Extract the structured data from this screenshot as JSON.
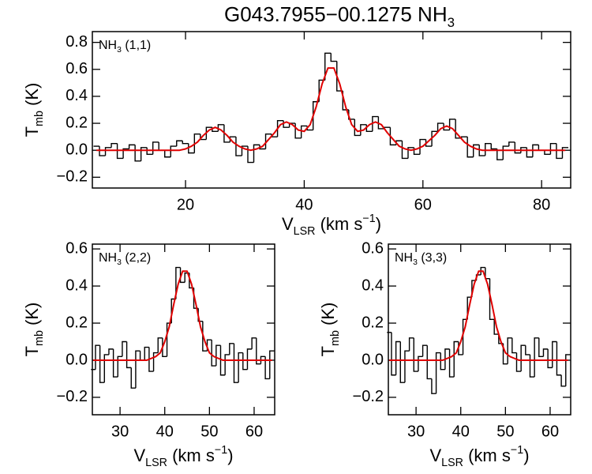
{
  "title": [
    {
      "text": "G043.7955−00.1275 NH"
    },
    {
      "text": "3",
      "sub": true
    }
  ],
  "chart_data": [
    {
      "type": "line",
      "annotation": [
        {
          "text": "NH"
        },
        {
          "text": "3",
          "sub": true
        },
        {
          "text": " (1,1)"
        }
      ],
      "xlabel": [
        {
          "text": "V"
        },
        {
          "text": "LSR",
          "sub": true
        },
        {
          "text": " (km s"
        },
        {
          "text": "−1",
          "sup": true
        },
        {
          "text": ")"
        }
      ],
      "ylabel": [
        {
          "text": "T"
        },
        {
          "text": "mb",
          "sub": true
        },
        {
          "text": " (K)"
        }
      ],
      "xlim": [
        4.3,
        84.9
      ],
      "ylim": [
        -0.28,
        0.88
      ],
      "xticks": [
        20,
        40,
        60,
        80
      ],
      "yticks": [
        {
          "value": -0.2,
          "label": "−0.2"
        },
        {
          "value": 0,
          "label": "0.0"
        },
        0.2,
        0.4,
        0.6,
        0.8
      ],
      "x": [
        5,
        6,
        7,
        8,
        9,
        10,
        11,
        12,
        13,
        14,
        15,
        16,
        17,
        18,
        19,
        20,
        21,
        22,
        23,
        24,
        25,
        26,
        27,
        28,
        29,
        30,
        31,
        32,
        33,
        34,
        35,
        36,
        37,
        38,
        39,
        40,
        41,
        42,
        43,
        44,
        45,
        46,
        47,
        48,
        49,
        50,
        51,
        52,
        53,
        54,
        55,
        56,
        57,
        58,
        59,
        60,
        61,
        62,
        63,
        64,
        65,
        66,
        67,
        68,
        69,
        70,
        71,
        72,
        73,
        74,
        75,
        76,
        77,
        78,
        79,
        80,
        81,
        82,
        83,
        84
      ],
      "series": [
        {
          "color": "#000000",
          "step": true,
          "values": [
            0.03,
            -0.04,
            0.02,
            0.05,
            -0.06,
            0.01,
            0.04,
            -0.08,
            0.02,
            -0.03,
            0.06,
            0.0,
            -0.05,
            0.03,
            0.07,
            0.05,
            -0.02,
            0.12,
            0.08,
            0.17,
            0.14,
            0.19,
            0.06,
            0.1,
            -0.04,
            0.03,
            -0.09,
            0.04,
            0.01,
            0.12,
            0.1,
            0.22,
            0.17,
            0.2,
            0.09,
            0.18,
            0.15,
            0.36,
            0.52,
            0.72,
            0.66,
            0.44,
            0.3,
            0.23,
            0.11,
            0.19,
            0.14,
            0.25,
            0.16,
            0.17,
            0.04,
            0.07,
            -0.06,
            0.02,
            -0.03,
            0.08,
            0.03,
            0.14,
            0.2,
            0.15,
            0.23,
            0.09,
            0.1,
            -0.05,
            0.04,
            -0.04,
            0.05,
            0.01,
            -0.07,
            0.03,
            0.06,
            -0.02,
            0.02,
            -0.05,
            0.04,
            0.0,
            -0.03,
            0.05,
            -0.06,
            0.02
          ]
        },
        {
          "color": "#e00000",
          "step": false,
          "values": [
            0,
            0,
            0,
            0,
            0,
            0,
            0,
            0,
            0,
            0,
            0,
            0,
            0,
            0,
            0,
            0.01,
            0.03,
            0.06,
            0.11,
            0.15,
            0.17,
            0.15,
            0.11,
            0.06,
            0.03,
            0.01,
            0,
            0.01,
            0.03,
            0.08,
            0.13,
            0.19,
            0.21,
            0.19,
            0.15,
            0.14,
            0.19,
            0.32,
            0.49,
            0.61,
            0.61,
            0.49,
            0.32,
            0.19,
            0.14,
            0.15,
            0.19,
            0.21,
            0.19,
            0.13,
            0.08,
            0.03,
            0.01,
            0,
            0.01,
            0.03,
            0.07,
            0.11,
            0.16,
            0.18,
            0.16,
            0.11,
            0.06,
            0.03,
            0.01,
            0,
            0,
            0,
            0,
            0,
            0,
            0,
            0,
            0,
            0,
            0,
            0,
            0,
            0,
            0
          ]
        }
      ]
    },
    {
      "type": "line",
      "annotation": [
        {
          "text": "NH"
        },
        {
          "text": "3",
          "sub": true
        },
        {
          "text": " (2,2)"
        }
      ],
      "xlabel": [
        {
          "text": "V"
        },
        {
          "text": "LSR",
          "sub": true
        },
        {
          "text": " (km s"
        },
        {
          "text": "−1",
          "sup": true
        },
        {
          "text": ")"
        }
      ],
      "ylabel": [
        {
          "text": "T"
        },
        {
          "text": "mb",
          "sub": true
        },
        {
          "text": " (K)"
        }
      ],
      "xlim": [
        23.8,
        64.6
      ],
      "ylim": [
        -0.294,
        0.626
      ],
      "xticks": [
        30,
        40,
        50,
        60
      ],
      "yticks": [
        {
          "value": -0.2,
          "label": "−0.2"
        },
        {
          "value": 0,
          "label": "0.0"
        },
        0.2,
        0.4,
        0.6
      ],
      "x": [
        24,
        25,
        26,
        27,
        28,
        29,
        30,
        31,
        32,
        33,
        34,
        35,
        36,
        37,
        38,
        39,
        40,
        41,
        42,
        43,
        44,
        45,
        46,
        47,
        48,
        49,
        50,
        51,
        52,
        53,
        54,
        55,
        56,
        57,
        58,
        59,
        60,
        61,
        62,
        63,
        64
      ],
      "series": [
        {
          "color": "#000000",
          "step": true,
          "values": [
            -0.05,
            0.08,
            -0.12,
            0.03,
            0.06,
            -0.09,
            0.02,
            0.1,
            -0.04,
            -0.15,
            0.05,
            0.0,
            0.07,
            -0.06,
            0.04,
            0.12,
            0.02,
            0.2,
            0.33,
            0.5,
            0.42,
            0.47,
            0.39,
            0.28,
            0.21,
            0.05,
            0.11,
            -0.03,
            0.08,
            -0.08,
            0.03,
            0.09,
            -0.12,
            0.04,
            -0.05,
            0.06,
            0.12,
            -0.02,
            0.02,
            -0.1,
            0.05
          ]
        },
        {
          "color": "#e00000",
          "step": false,
          "values": [
            0,
            0,
            0,
            0,
            0,
            0,
            0,
            0,
            0,
            0,
            0,
            0,
            0,
            0.01,
            0.02,
            0.04,
            0.1,
            0.18,
            0.3,
            0.41,
            0.48,
            0.48,
            0.41,
            0.3,
            0.18,
            0.1,
            0.04,
            0.02,
            0.01,
            0,
            0,
            0,
            0,
            0,
            0,
            0,
            0,
            0,
            0,
            0,
            0
          ]
        }
      ]
    },
    {
      "type": "line",
      "annotation": [
        {
          "text": "NH"
        },
        {
          "text": "3",
          "sub": true
        },
        {
          "text": " (3,3)"
        }
      ],
      "xlabel": [
        {
          "text": "V"
        },
        {
          "text": "LSR",
          "sub": true
        },
        {
          "text": " (km s"
        },
        {
          "text": "−1",
          "sup": true
        },
        {
          "text": ")"
        }
      ],
      "ylabel": [
        {
          "text": "T"
        },
        {
          "text": "mb",
          "sub": true
        },
        {
          "text": " (K)"
        }
      ],
      "xlim": [
        23.8,
        64.6
      ],
      "ylim": [
        -0.294,
        0.626
      ],
      "xticks": [
        30,
        40,
        50,
        60
      ],
      "yticks": [
        {
          "value": -0.2,
          "label": "−0.2"
        },
        {
          "value": 0,
          "label": "0.0"
        },
        0.2,
        0.4,
        0.6
      ],
      "x": [
        24,
        25,
        26,
        27,
        28,
        29,
        30,
        31,
        32,
        33,
        34,
        35,
        36,
        37,
        38,
        39,
        40,
        41,
        42,
        43,
        44,
        45,
        46,
        47,
        48,
        49,
        50,
        51,
        52,
        53,
        54,
        55,
        56,
        57,
        58,
        59,
        60,
        61,
        62,
        63,
        64
      ],
      "series": [
        {
          "color": "#000000",
          "step": true,
          "values": [
            0.15,
            -0.08,
            0.1,
            -0.12,
            0.05,
            0.12,
            -0.06,
            0.02,
            0.08,
            -0.1,
            -0.18,
            0.04,
            -0.05,
            0.06,
            -0.09,
            0.1,
            0.03,
            0.22,
            0.34,
            0.43,
            0.46,
            0.5,
            0.44,
            0.22,
            0.14,
            0.09,
            -0.02,
            0.12,
            0.04,
            -0.06,
            0.08,
            0.03,
            -0.09,
            0.12,
            0.02,
            0.06,
            -0.04,
            0.1,
            -0.08,
            -0.14,
            0.03
          ]
        },
        {
          "color": "#e00000",
          "step": false,
          "values": [
            0,
            0,
            0,
            0,
            0,
            0,
            0,
            0,
            0,
            0,
            0,
            0,
            0,
            0.01,
            0.02,
            0.04,
            0.1,
            0.18,
            0.3,
            0.41,
            0.48,
            0.48,
            0.41,
            0.3,
            0.18,
            0.1,
            0.04,
            0.02,
            0.01,
            0,
            0,
            0,
            0,
            0,
            0,
            0,
            0,
            0,
            0,
            0,
            0
          ]
        }
      ]
    }
  ]
}
